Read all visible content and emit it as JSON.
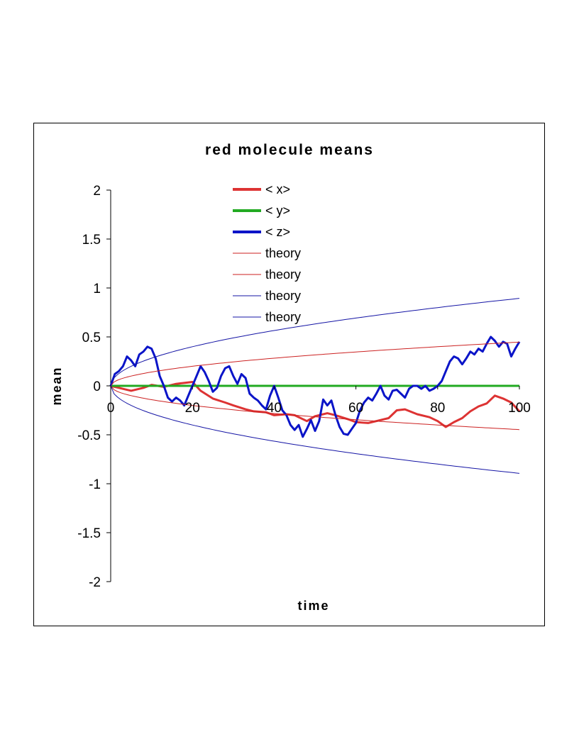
{
  "chart_data": {
    "type": "line",
    "title": "red molecule means",
    "xlabel": "time",
    "ylabel": "mean",
    "xlim": [
      0,
      100
    ],
    "ylim": [
      -2,
      2
    ],
    "x_ticks": [
      0,
      20,
      40,
      60,
      80,
      100
    ],
    "y_ticks": [
      2,
      1.5,
      1,
      0.5,
      0,
      -0.5,
      -1,
      -1.5,
      -2
    ],
    "x_tick_labels": [
      "0",
      "20",
      "40",
      "60",
      "80",
      "100"
    ],
    "y_tick_labels": [
      "2",
      "1.5",
      "1",
      "0.5",
      "0",
      "-0.5",
      "-1",
      "-1.5",
      "-2"
    ],
    "legend_position": "top-center",
    "grid": false,
    "series": [
      {
        "name": "< x>",
        "color": "#dd3333",
        "style": "thick",
        "x": [
          0,
          2,
          5,
          8,
          10,
          13,
          16,
          18,
          20,
          22,
          25,
          28,
          30,
          33,
          35,
          38,
          40,
          43,
          45,
          48,
          50,
          53,
          55,
          58,
          60,
          63,
          65,
          68,
          70,
          72,
          75,
          78,
          80,
          82,
          84,
          86,
          88,
          90,
          92,
          94,
          96,
          98,
          100
        ],
        "y": [
          0,
          -0.02,
          -0.05,
          -0.02,
          0.01,
          -0.01,
          0.02,
          0.03,
          0.04,
          -0.05,
          -0.13,
          -0.17,
          -0.2,
          -0.24,
          -0.26,
          -0.27,
          -0.3,
          -0.29,
          -0.3,
          -0.36,
          -0.31,
          -0.28,
          -0.3,
          -0.34,
          -0.37,
          -0.38,
          -0.36,
          -0.33,
          -0.25,
          -0.24,
          -0.29,
          -0.32,
          -0.36,
          -0.42,
          -0.37,
          -0.33,
          -0.26,
          -0.21,
          -0.18,
          -0.1,
          -0.13,
          -0.17,
          -0.26
        ]
      },
      {
        "name": "< y>",
        "color": "#22aa22",
        "style": "thick",
        "x": [
          0,
          100
        ],
        "y": [
          0,
          0
        ]
      },
      {
        "name": "< z>",
        "color": "#0a14c8",
        "style": "thick",
        "x": [
          0,
          1,
          2,
          3,
          4,
          5,
          6,
          7,
          8,
          9,
          10,
          11,
          12,
          13,
          14,
          15,
          16,
          17,
          18,
          19,
          20,
          21,
          22,
          23,
          24,
          25,
          26,
          27,
          28,
          29,
          30,
          31,
          32,
          33,
          34,
          35,
          36,
          37,
          38,
          39,
          40,
          41,
          42,
          43,
          44,
          45,
          46,
          47,
          48,
          49,
          50,
          51,
          52,
          53,
          54,
          55,
          56,
          57,
          58,
          59,
          60,
          61,
          62,
          63,
          64,
          65,
          66,
          67,
          68,
          69,
          70,
          71,
          72,
          73,
          74,
          75,
          76,
          77,
          78,
          79,
          80,
          81,
          82,
          83,
          84,
          85,
          86,
          87,
          88,
          89,
          90,
          91,
          92,
          93,
          94,
          95,
          96,
          97,
          98,
          99,
          100
        ],
        "y": [
          0,
          0.12,
          0.15,
          0.2,
          0.3,
          0.26,
          0.2,
          0.32,
          0.35,
          0.4,
          0.38,
          0.28,
          0.1,
          0,
          -0.12,
          -0.16,
          -0.12,
          -0.15,
          -0.2,
          -0.1,
          0,
          0.1,
          0.2,
          0.14,
          0.05,
          -0.06,
          -0.02,
          0.1,
          0.18,
          0.2,
          0.1,
          0.02,
          0.12,
          0.08,
          -0.08,
          -0.12,
          -0.15,
          -0.2,
          -0.24,
          -0.1,
          0,
          -0.12,
          -0.25,
          -0.3,
          -0.4,
          -0.45,
          -0.4,
          -0.52,
          -0.44,
          -0.35,
          -0.46,
          -0.36,
          -0.14,
          -0.2,
          -0.15,
          -0.3,
          -0.42,
          -0.49,
          -0.5,
          -0.44,
          -0.38,
          -0.25,
          -0.17,
          -0.12,
          -0.15,
          -0.08,
          0,
          -0.1,
          -0.14,
          -0.05,
          -0.04,
          -0.08,
          -0.12,
          -0.03,
          0,
          0,
          -0.03,
          0,
          -0.05,
          -0.03,
          0,
          0.05,
          0.15,
          0.25,
          0.3,
          0.28,
          0.22,
          0.28,
          0.35,
          0.32,
          0.38,
          0.35,
          0.43,
          0.5,
          0.46,
          0.4,
          0.45,
          0.43,
          0.3,
          0.38,
          0.45
        ]
      },
      {
        "name": "theory",
        "color": "#cc2222",
        "style": "thin",
        "function": "sqrt",
        "coefficient": 0.0447,
        "xlim": [
          0,
          100
        ]
      },
      {
        "name": "theory",
        "color": "#cc2222",
        "style": "thin",
        "function": "sqrt",
        "coefficient": -0.0447,
        "xlim": [
          0,
          100
        ]
      },
      {
        "name": "theory",
        "color": "#1515a5",
        "style": "thin",
        "function": "sqrt",
        "coefficient": 0.0894,
        "xlim": [
          0,
          100
        ]
      },
      {
        "name": "theory",
        "color": "#1515a5",
        "style": "thin",
        "function": "sqrt",
        "coefficient": -0.0894,
        "xlim": [
          0,
          100
        ]
      }
    ]
  }
}
